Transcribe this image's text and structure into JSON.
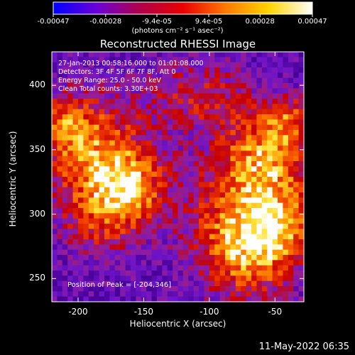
{
  "colorbar": {
    "tick_labels": [
      "-0.00047",
      "-0.00028",
      "-9.4e-05",
      "9.4e-05",
      "0.00028",
      "0.00047"
    ],
    "tick_values": [
      -0.00047,
      -0.00028,
      -9.4e-05,
      9.4e-05,
      0.00028,
      0.00047
    ],
    "range": [
      -0.00047,
      0.00047
    ],
    "unit_label": "(photons cm⁻² s⁻¹ asec⁻²)",
    "colors": [
      "#0000ff",
      "#6a00d8",
      "#b0004a",
      "#e80000",
      "#ff7a00",
      "#ffd400",
      "#ffffff"
    ]
  },
  "chart_data": {
    "type": "heatmap",
    "title": "Reconstructed RHESSI Image",
    "xlabel": "Heliocentric X (arcsec)",
    "ylabel": "Heliocentric Y (arcsec)",
    "xlim": [
      -220,
      -28
    ],
    "ylim": [
      232,
      426
    ],
    "x_ticks": [
      -200,
      -150,
      -100,
      -50
    ],
    "y_ticks": [
      250,
      300,
      350,
      400
    ],
    "annotations": [
      "27-Jan-2013 00:58:16.000 to 01:01:08.000",
      "Detectors: 3F 4F 5F 6F 7F 8F, Att 0",
      "Energy Range: 25.0 - 50.0 keV",
      "Clean    Total counts: 3.30E+03"
    ],
    "peak_text": "Position of Peak = [-204,346]",
    "peak_position": [
      -204,
      346
    ],
    "grid": false
  },
  "footer": {
    "date": "11-May-2022 06:35"
  }
}
